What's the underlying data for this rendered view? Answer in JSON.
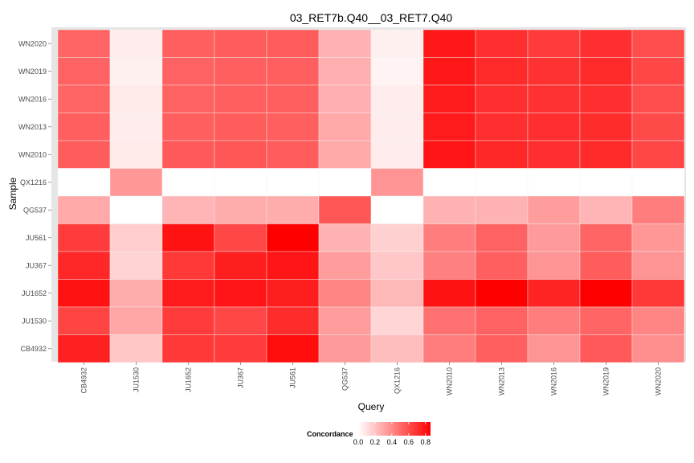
{
  "chart_data": {
    "type": "heatmap",
    "title": "03_RET7b.Q40__03_RET7.Q40",
    "xlabel": "Query",
    "ylabel": "Sample",
    "x_categories": [
      "CB4932",
      "JU1530",
      "JU1652",
      "JU367",
      "JU561",
      "QG537",
      "QX1216",
      "WN2010",
      "WN2013",
      "WN2016",
      "WN2019",
      "WN2020"
    ],
    "y_categories_top_to_bottom": [
      "WN2020",
      "WN2019",
      "WN2016",
      "WN2013",
      "WN2010",
      "QX1216",
      "QG537",
      "JU561",
      "JU367",
      "JU1652",
      "JU1530",
      "CB4932"
    ],
    "values": [
      [
        0.52,
        0.06,
        0.54,
        0.55,
        0.55,
        0.26,
        0.05,
        0.78,
        0.7,
        0.66,
        0.7,
        0.6
      ],
      [
        0.53,
        0.05,
        0.53,
        0.54,
        0.54,
        0.27,
        0.04,
        0.78,
        0.72,
        0.69,
        0.72,
        0.62
      ],
      [
        0.52,
        0.07,
        0.53,
        0.54,
        0.54,
        0.27,
        0.06,
        0.77,
        0.7,
        0.69,
        0.7,
        0.6
      ],
      [
        0.54,
        0.06,
        0.54,
        0.55,
        0.54,
        0.29,
        0.06,
        0.77,
        0.7,
        0.7,
        0.71,
        0.61
      ],
      [
        0.55,
        0.07,
        0.56,
        0.57,
        0.55,
        0.29,
        0.06,
        0.79,
        0.73,
        0.7,
        0.72,
        0.62
      ],
      [
        null,
        0.35,
        null,
        null,
        null,
        null,
        0.36,
        null,
        null,
        null,
        null,
        null
      ],
      [
        0.29,
        null,
        0.25,
        0.28,
        0.28,
        0.57,
        null,
        0.26,
        0.26,
        0.33,
        0.25,
        0.44
      ],
      [
        0.66,
        0.17,
        0.8,
        0.62,
        0.86,
        0.26,
        0.16,
        0.44,
        0.53,
        0.34,
        0.52,
        0.35
      ],
      [
        0.73,
        0.15,
        0.67,
        0.76,
        0.79,
        0.33,
        0.19,
        0.43,
        0.54,
        0.36,
        0.55,
        0.36
      ],
      [
        0.8,
        0.28,
        0.77,
        0.79,
        0.76,
        0.41,
        0.24,
        0.8,
        0.86,
        0.74,
        0.86,
        0.67
      ],
      [
        0.63,
        0.3,
        0.66,
        0.62,
        0.71,
        0.33,
        0.14,
        0.48,
        0.53,
        0.44,
        0.52,
        0.41
      ],
      [
        0.75,
        0.19,
        0.67,
        0.66,
        0.82,
        0.34,
        0.22,
        0.44,
        0.54,
        0.36,
        0.56,
        0.38
      ]
    ],
    "color_scale": {
      "low": "#ffffff",
      "high": "#ff0000",
      "na_color": "#ffffff",
      "range": [
        0.0,
        0.86
      ]
    },
    "legend": {
      "title": "Concordance",
      "position": "bottom",
      "ticks": [
        "0.0",
        "0.2",
        "0.4",
        "0.6",
        "0.8"
      ],
      "tick_values": [
        0.0,
        0.2,
        0.4,
        0.6,
        0.8
      ]
    },
    "panel_background": "#e5e5e5"
  }
}
